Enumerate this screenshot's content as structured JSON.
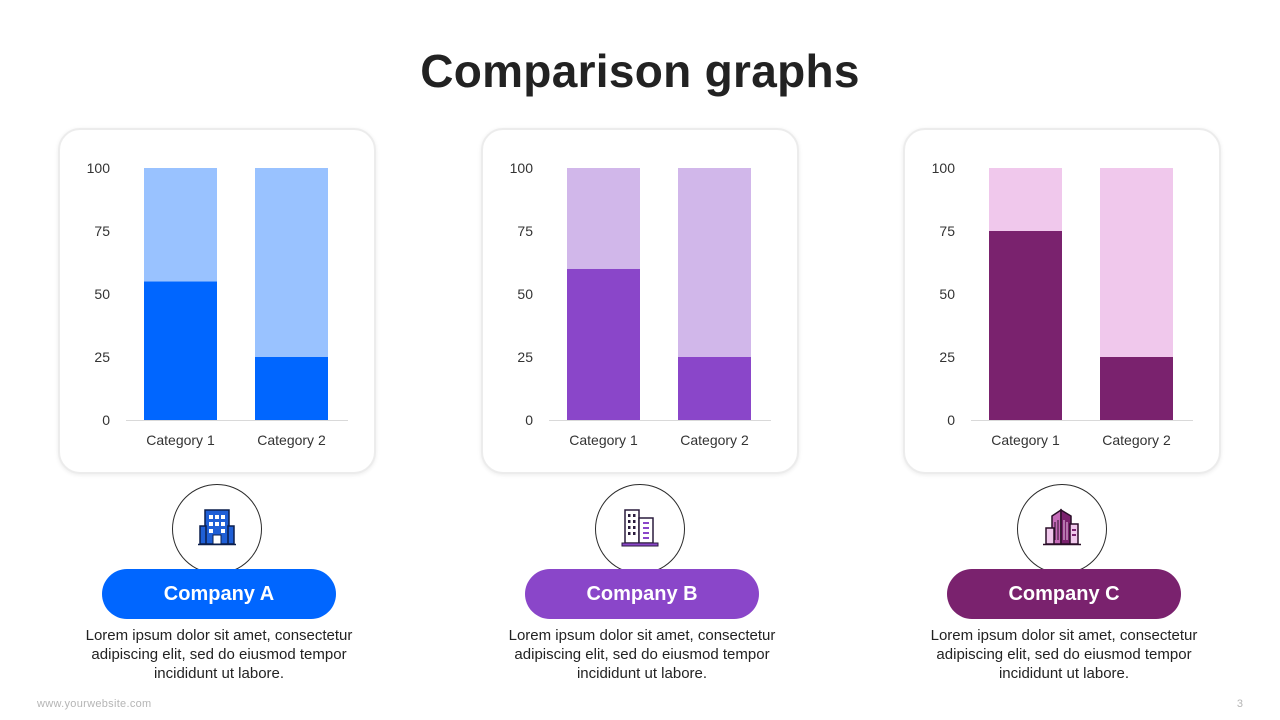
{
  "title": "Comparison graphs",
  "footer": {
    "website": "www.yourwebsite.com",
    "page_number": "3"
  },
  "panels": [
    {
      "company": "Company A",
      "description": "Lorem ipsum dolor sit amet, consectetur adipiscing elit, sed do eiusmod tempor incididunt ut labore.",
      "icon": "office-building-icon",
      "colors": {
        "dark": "#0066ff",
        "light": "#99c2ff",
        "disc": "#cce0ff"
      }
    },
    {
      "company": "Company B",
      "description": "Lorem ipsum dolor sit amet, consectetur adipiscing elit, sed do eiusmod tempor incididunt ut labore.",
      "icon": "city-buildings-icon",
      "colors": {
        "dark": "#8a46c9",
        "light": "#d1b7ea",
        "disc": "#e8dbf5"
      }
    },
    {
      "company": "Company C",
      "description": "Lorem ipsum dolor sit amet, consectetur adipiscing elit, sed do eiusmod tempor incididunt ut labore.",
      "icon": "skyscraper-icon",
      "colors": {
        "dark": "#7a226e",
        "light": "#f0c8ec",
        "disc": "#f2d0ee"
      }
    }
  ],
  "chart_data": [
    {
      "type": "bar",
      "stacked": true,
      "categories": [
        "Category 1",
        "Category 2"
      ],
      "series": [
        {
          "values": [
            55,
            25
          ]
        },
        {
          "values": [
            45,
            75
          ]
        }
      ],
      "ylim": [
        0,
        100
      ],
      "yticks": [
        0,
        25,
        50,
        75,
        100
      ]
    },
    {
      "type": "bar",
      "stacked": true,
      "categories": [
        "Category 1",
        "Category 2"
      ],
      "series": [
        {
          "values": [
            60,
            25
          ]
        },
        {
          "values": [
            40,
            75
          ]
        }
      ],
      "ylim": [
        0,
        100
      ],
      "yticks": [
        0,
        25,
        50,
        75,
        100
      ]
    },
    {
      "type": "bar",
      "stacked": true,
      "categories": [
        "Category 1",
        "Category 2"
      ],
      "series": [
        {
          "values": [
            75,
            25
          ]
        },
        {
          "values": [
            25,
            75
          ]
        }
      ],
      "ylim": [
        0,
        100
      ],
      "yticks": [
        0,
        25,
        50,
        75,
        100
      ]
    }
  ]
}
